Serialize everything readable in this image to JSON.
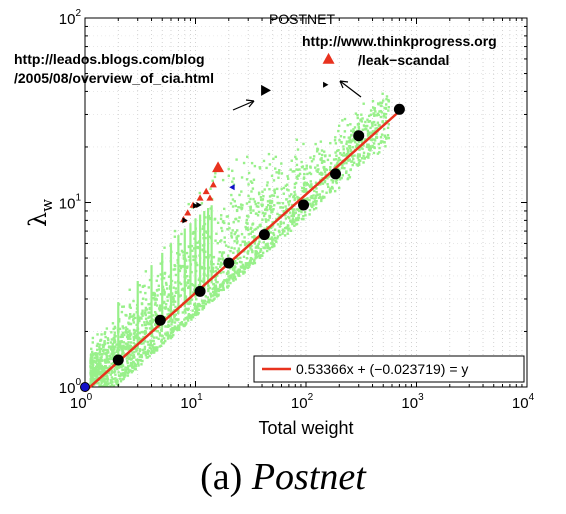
{
  "chart_data": {
    "type": "scatter",
    "title": "POSTNET",
    "xlabel": "Total weight",
    "ylabel_base": "λ",
    "ylabel_sub": "w",
    "xscale": "log",
    "yscale": "log",
    "xlim": [
      1,
      10000
    ],
    "ylim": [
      1,
      100
    ],
    "grid": true,
    "x_ticks": [
      {
        "value": 1,
        "base": "10",
        "exp": "0"
      },
      {
        "value": 10,
        "base": "10",
        "exp": "1"
      },
      {
        "value": 100,
        "base": "10",
        "exp": "2"
      },
      {
        "value": 1000,
        "base": "10",
        "exp": "3"
      },
      {
        "value": 10000,
        "base": "10",
        "exp": "4"
      }
    ],
    "y_ticks": [
      {
        "value": 1,
        "base": "10",
        "exp": "0"
      },
      {
        "value": 10,
        "base": "10",
        "exp": "1"
      },
      {
        "value": 100,
        "base": "10",
        "exp": "2"
      }
    ],
    "legend": {
      "label": "0.53366x + (−0.023719) = y",
      "position": "bottom-right"
    },
    "fit_line": {
      "slope": 0.53366,
      "intercept": -0.023719,
      "x_range": [
        1,
        700
      ],
      "color": "#e8321e"
    },
    "colors": {
      "cloud": "#98f08a",
      "binned": "#000000",
      "fit": "#e8321e",
      "highlight": "#e8321e",
      "outlier": "#000000",
      "origin": "#1010c8"
    },
    "binned_means": [
      {
        "x": 1,
        "y": 1
      },
      {
        "x": 2,
        "y": 1.4
      },
      {
        "x": 4.8,
        "y": 2.3
      },
      {
        "x": 11,
        "y": 3.3
      },
      {
        "x": 20,
        "y": 4.7
      },
      {
        "x": 42,
        "y": 6.7
      },
      {
        "x": 95,
        "y": 9.7
      },
      {
        "x": 185,
        "y": 14.3
      },
      {
        "x": 300,
        "y": 23
      },
      {
        "x": 700,
        "y": 32
      }
    ],
    "highlighted_triangles": [
      {
        "x": 16,
        "y": 15.5,
        "size": "large"
      },
      {
        "x": 160,
        "y": 60,
        "size": "large"
      },
      {
        "x": 14.5,
        "y": 12.5,
        "size": "small"
      },
      {
        "x": 12.5,
        "y": 11.5,
        "size": "small"
      },
      {
        "x": 11,
        "y": 10.6,
        "size": "small"
      },
      {
        "x": 13.5,
        "y": 10.6,
        "size": "small"
      },
      {
        "x": 9.5,
        "y": 9.7,
        "size": "small"
      },
      {
        "x": 8.5,
        "y": 8.8,
        "size": "small"
      },
      {
        "x": 7.8,
        "y": 8.1,
        "size": "small"
      }
    ],
    "outlier_markers": [
      {
        "x": 43,
        "y": 40.5,
        "size": "large"
      },
      {
        "x": 150,
        "y": 43.5,
        "size": "small"
      },
      {
        "x": 10,
        "y": 9.6,
        "size": "small"
      },
      {
        "x": 10.7,
        "y": 9.7,
        "size": "small"
      },
      {
        "x": 8,
        "y": 8,
        "size": "small"
      },
      {
        "x": 21.5,
        "y": 12.1,
        "size": "small",
        "color": "#1010c8",
        "direction": "left"
      }
    ],
    "annotations": [
      {
        "id": "leados",
        "lines": [
          "http://leados.blogs.com/blog",
          "/2005/08/overview_of_cia.html"
        ]
      },
      {
        "id": "thinkprogress",
        "lines": [
          "http://www.thinkprogress.org",
          "/leak−scandal"
        ]
      }
    ]
  },
  "caption": {
    "label": "(a) ",
    "name": "Postnet"
  }
}
